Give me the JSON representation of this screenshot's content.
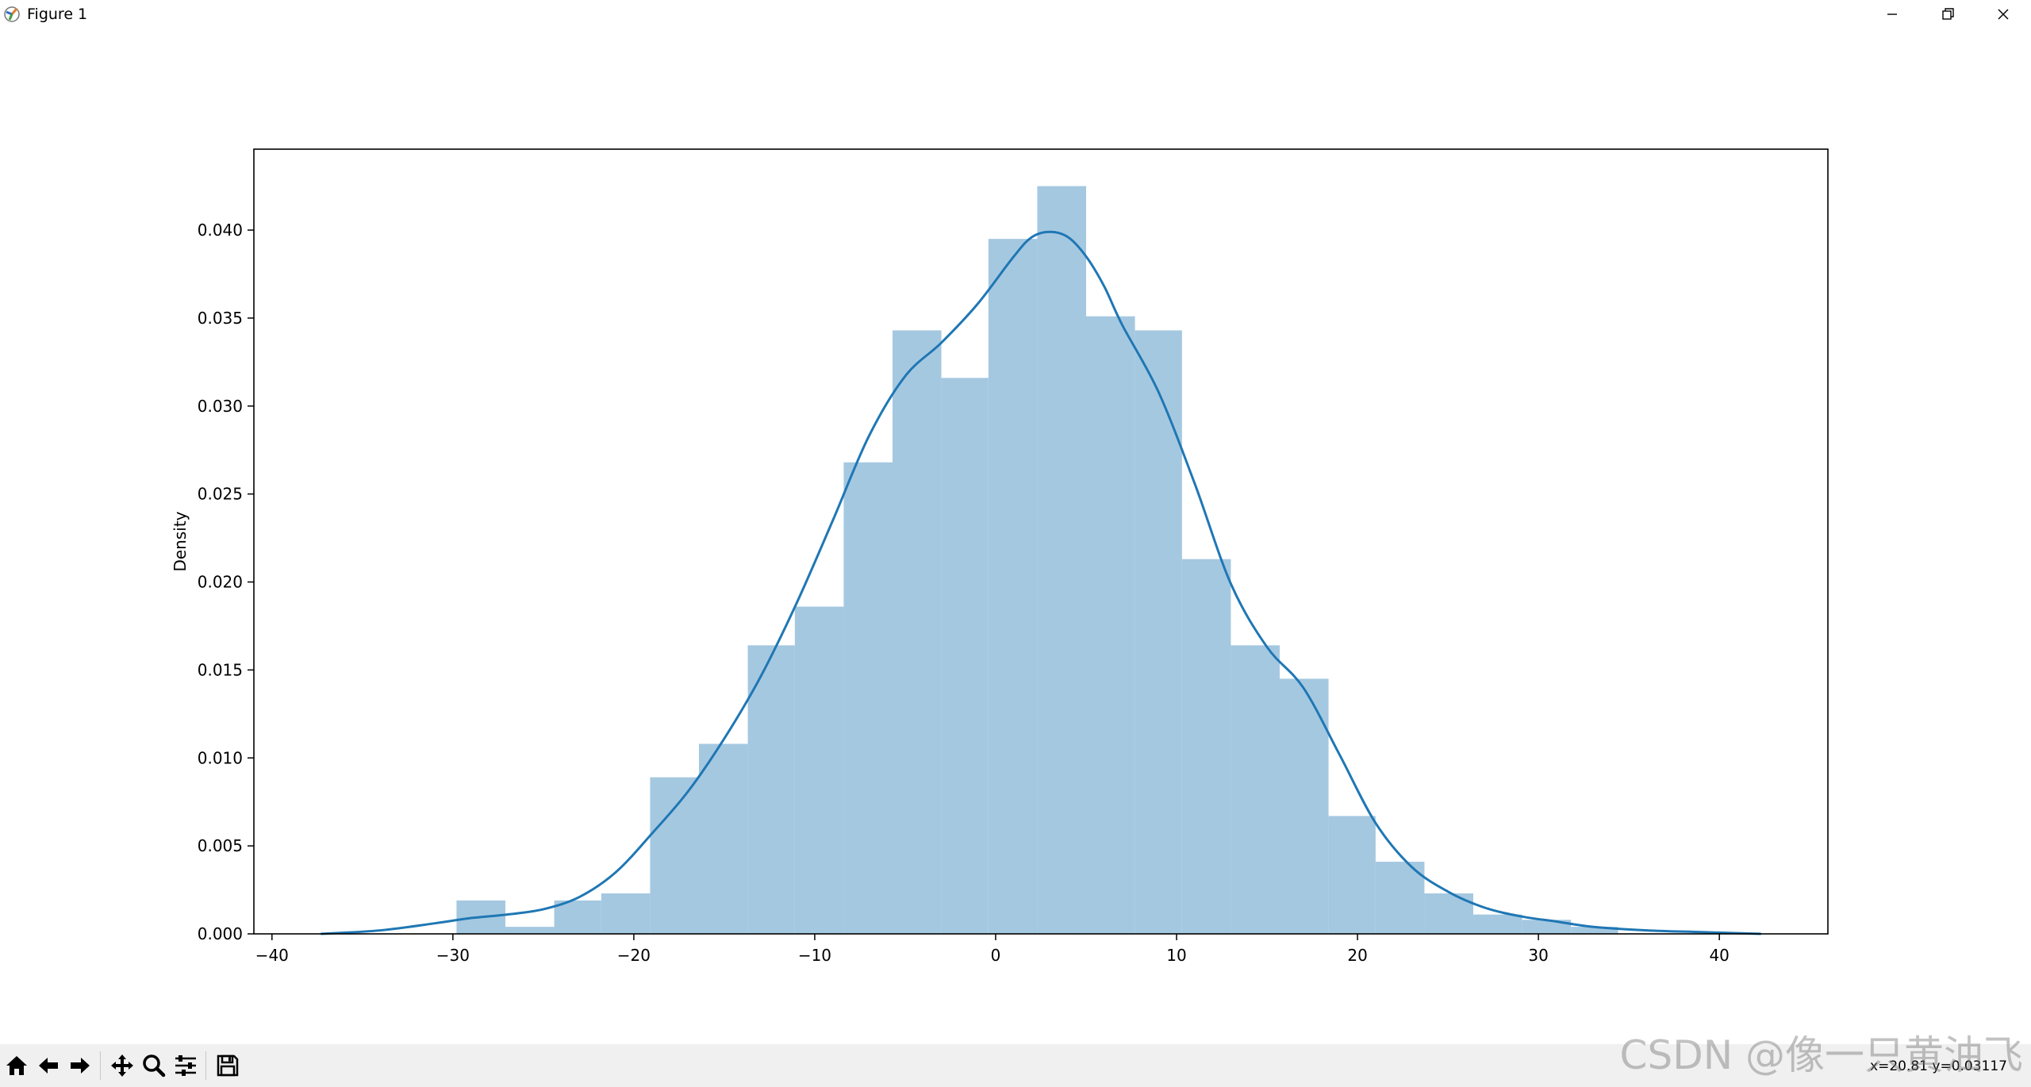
{
  "window": {
    "title": "Figure 1"
  },
  "toolbar": {
    "buttons": [
      "home-icon",
      "back-icon",
      "forward-icon",
      "pan-icon",
      "zoom-icon",
      "configure-icon",
      "save-icon"
    ],
    "coordinates": "x=20.81   y=0.03117"
  },
  "watermark": "CSDN @像一只黄油飞",
  "colors": {
    "bar": "#a5c8e1",
    "kde": "#1f77b4"
  },
  "chart_data": {
    "type": "bar",
    "title": "",
    "xlabel": "",
    "ylabel": "Density",
    "xlim": [
      -41,
      46
    ],
    "ylim": [
      0,
      0.0446
    ],
    "grid": false,
    "xticks": [
      -40,
      -30,
      -20,
      -10,
      0,
      10,
      20,
      30,
      40
    ],
    "yticks": [
      0.0,
      0.005,
      0.01,
      0.015,
      0.02,
      0.025,
      0.03,
      0.035,
      0.04
    ],
    "ytick_labels": [
      "0.000",
      "0.005",
      "0.010",
      "0.015",
      "0.020",
      "0.025",
      "0.030",
      "0.035",
      "0.040"
    ],
    "xtick_labels": [
      "−40",
      "−30",
      "−20",
      "−10",
      "0",
      "10",
      "20",
      "30",
      "40"
    ],
    "bins": {
      "edges": [
        -29.8,
        -27.1,
        -24.4,
        -21.8,
        -19.1,
        -16.4,
        -13.7,
        -11.1,
        -8.4,
        -5.7,
        -3.0,
        -0.4,
        2.3,
        5.0,
        7.7,
        10.3,
        13.0,
        15.7,
        18.4,
        21.0,
        23.7,
        26.4,
        29.1,
        31.8,
        34.4
      ],
      "values": [
        0.0019,
        0.0004,
        0.0019,
        0.0023,
        0.0089,
        0.0108,
        0.0164,
        0.0186,
        0.0268,
        0.0343,
        0.0316,
        0.0395,
        0.0425,
        0.0351,
        0.0343,
        0.0213,
        0.0164,
        0.0145,
        0.0067,
        0.0041,
        0.0023,
        0.0011,
        0.0008,
        0.0004
      ]
    },
    "kde": {
      "x": [
        -37.3,
        -34,
        -31,
        -29,
        -27,
        -25,
        -23,
        -21,
        -19,
        -17,
        -15,
        -13,
        -11,
        -9,
        -7,
        -5,
        -3,
        -1,
        1,
        2,
        3,
        4,
        5,
        6,
        7,
        9,
        11,
        13,
        15,
        17,
        19,
        21,
        23,
        25,
        27,
        29,
        31,
        33,
        36,
        39,
        42.3
      ],
      "y": [
        0.0,
        0.0002,
        0.0006,
        0.0009,
        0.0011,
        0.0014,
        0.0021,
        0.0035,
        0.0057,
        0.0081,
        0.0111,
        0.0146,
        0.0188,
        0.0235,
        0.0283,
        0.0317,
        0.0336,
        0.0358,
        0.0385,
        0.0396,
        0.0399,
        0.0396,
        0.0385,
        0.0368,
        0.0346,
        0.0308,
        0.0256,
        0.0199,
        0.0163,
        0.014,
        0.0102,
        0.0063,
        0.0038,
        0.0024,
        0.0015,
        0.001,
        0.0007,
        0.0004,
        0.0002,
        0.0001,
        0.0
      ]
    }
  }
}
